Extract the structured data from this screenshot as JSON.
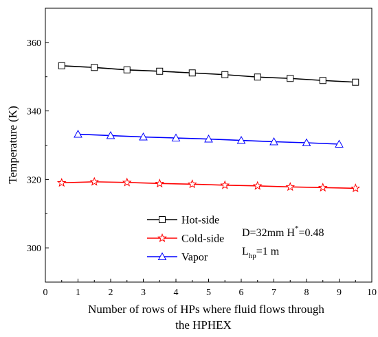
{
  "chart_data": {
    "type": "line",
    "title": "",
    "xlabel_line1": "Number of rows of HPs where fluid flows through",
    "xlabel_line2": "the HPHEX",
    "ylabel": "Temperature (K)",
    "xlim": [
      0,
      10
    ],
    "ylim": [
      290,
      370
    ],
    "xticks": [
      0,
      1,
      2,
      3,
      4,
      5,
      6,
      7,
      8,
      9,
      10
    ],
    "yticks": [
      300,
      320,
      340,
      360
    ],
    "grid": false,
    "legend_position": "bottom-left",
    "series": [
      {
        "name": "Hot-side",
        "color": "#000000",
        "marker": "square",
        "x": [
          0.5,
          1.5,
          2.5,
          3.5,
          4.5,
          5.5,
          6.5,
          7.5,
          8.5,
          9.5
        ],
        "y": [
          353.2,
          352.7,
          352.0,
          351.6,
          351.1,
          350.6,
          349.9,
          349.5,
          348.9,
          348.4
        ]
      },
      {
        "name": "Cold-side",
        "color": "#ff0000",
        "marker": "star",
        "x": [
          0.5,
          1.5,
          2.5,
          3.5,
          4.5,
          5.5,
          6.5,
          7.5,
          8.5,
          9.5
        ],
        "y": [
          319.0,
          319.3,
          319.1,
          318.8,
          318.6,
          318.3,
          318.1,
          317.8,
          317.6,
          317.4
        ]
      },
      {
        "name": "Vapor",
        "color": "#0000ff",
        "marker": "triangle",
        "x": [
          1,
          2,
          3,
          4,
          5,
          6,
          7,
          8,
          9
        ],
        "y": [
          333.2,
          332.8,
          332.4,
          332.1,
          331.8,
          331.4,
          331.0,
          330.7,
          330.3
        ]
      }
    ],
    "annotation": {
      "d_text": "D=32mm H",
      "h_sup": "*",
      "h_val": "=0.48",
      "l_text": "L",
      "l_sub": "hp",
      "l_val": "=1 m"
    }
  }
}
